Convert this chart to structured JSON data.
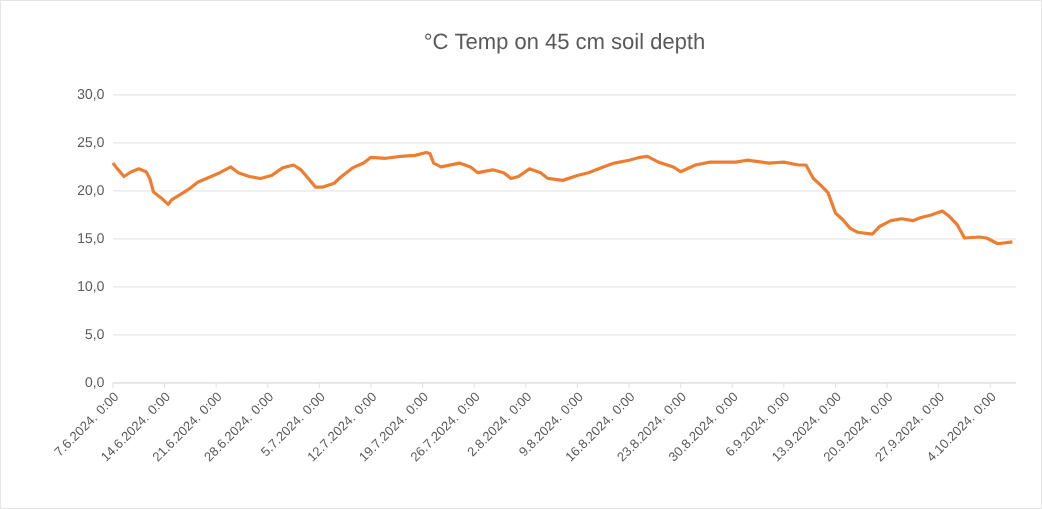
{
  "chart_data": {
    "type": "line",
    "title": "°C Temp on 45 cm soil depth",
    "x": [
      "2024-06-07",
      "2024-06-07T12:00",
      "2024-06-08T12:00",
      "2024-06-09T12:00",
      "2024-06-10T12:00",
      "2024-06-11T12:00",
      "2024-06-12",
      "2024-06-12T12:00",
      "2024-06-13T12:00",
      "2024-06-14T12:00",
      "2024-06-15",
      "2024-06-16T12:00",
      "2024-06-17T12:00",
      "2024-06-18T12:00",
      "2024-06-20",
      "2024-06-21T12:00",
      "2024-06-23",
      "2024-06-24",
      "2024-06-25T12:00",
      "2024-06-27",
      "2024-06-28T12:00",
      "2024-06-30",
      "2024-07-01T12:00",
      "2024-07-02T12:00",
      "2024-07-03T12:00",
      "2024-07-04T12:00",
      "2024-07-05T12:00",
      "2024-07-07",
      "2024-07-08",
      "2024-07-09T12:00",
      "2024-07-11",
      "2024-07-12",
      "2024-07-14",
      "2024-07-16",
      "2024-07-18",
      "2024-07-19T12:00",
      "2024-07-20",
      "2024-07-20T12:00",
      "2024-07-21T12:00",
      "2024-07-24",
      "2024-07-25T12:00",
      "2024-07-26T12:00",
      "2024-07-28T12:00",
      "2024-07-30",
      "2024-07-31",
      "2024-08-01",
      "2024-08-02T12:00",
      "2024-08-04",
      "2024-08-05",
      "2024-08-07",
      "2024-08-09",
      "2024-08-10T12:00",
      "2024-08-12T12:00",
      "2024-08-14",
      "2024-08-16",
      "2024-08-17T12:00",
      "2024-08-18T12:00",
      "2024-08-20",
      "2024-08-22",
      "2024-08-23",
      "2024-08-25",
      "2024-08-27",
      "2024-08-29T12:00",
      "2024-08-30T12:00",
      "2024-09-01",
      "2024-09-02",
      "2024-09-04",
      "2024-09-06",
      "2024-09-08",
      "2024-09-09",
      "2024-09-10",
      "2024-09-11",
      "2024-09-12",
      "2024-09-13",
      "2024-09-14",
      "2024-09-15",
      "2024-09-16",
      "2024-09-18",
      "2024-09-19",
      "2024-09-20T12:00",
      "2024-09-22",
      "2024-09-23T12:00",
      "2024-09-24T12:00",
      "2024-09-26",
      "2024-09-27T12:00",
      "2024-09-28T12:00",
      "2024-09-29T12:00",
      "2024-09-30T12:00",
      "2024-10-02T12:00",
      "2024-10-03T12:00",
      "2024-10-05",
      "2024-10-06",
      "2024-10-07"
    ],
    "values": [
      22.9,
      22.4,
      21.5,
      22.0,
      22.3,
      22.0,
      21.3,
      19.9,
      19.3,
      18.6,
      19.1,
      19.8,
      20.3,
      20.9,
      21.4,
      21.9,
      22.5,
      21.9,
      21.5,
      21.3,
      21.6,
      22.4,
      22.7,
      22.2,
      21.3,
      20.4,
      20.4,
      20.8,
      21.5,
      22.4,
      22.9,
      23.5,
      23.4,
      23.6,
      23.7,
      24.0,
      23.9,
      22.9,
      22.5,
      22.9,
      22.5,
      21.9,
      22.2,
      21.9,
      21.3,
      21.5,
      22.3,
      21.9,
      21.3,
      21.1,
      21.6,
      21.9,
      22.5,
      22.9,
      23.2,
      23.5,
      23.6,
      23.0,
      22.5,
      22.0,
      22.7,
      23.0,
      23.0,
      23.0,
      23.2,
      23.1,
      22.9,
      23.0,
      22.7,
      22.7,
      21.3,
      20.6,
      19.8,
      17.7,
      17.0,
      16.1,
      15.7,
      15.5,
      16.3,
      16.9,
      17.1,
      16.9,
      17.2,
      17.5,
      17.9,
      17.3,
      16.5,
      15.1,
      15.2,
      15.1,
      14.5,
      14.6,
      14.7
    ],
    "color": "#ed7d31",
    "line_style": "solid",
    "xlim": [
      "2024-06-07",
      "2024-10-07T12:00"
    ],
    "xticks": [
      {
        "value": "2024-06-07",
        "label": "7.6.2024. 0:00"
      },
      {
        "value": "2024-06-14",
        "label": "14.6.2024. 0:00"
      },
      {
        "value": "2024-06-21",
        "label": "21.6.2024. 0:00"
      },
      {
        "value": "2024-06-28",
        "label": "28.6.2024. 0:00"
      },
      {
        "value": "2024-07-05",
        "label": "5.7.2024. 0:00"
      },
      {
        "value": "2024-07-12",
        "label": "12.7.2024. 0:00"
      },
      {
        "value": "2024-07-19",
        "label": "19.7.2024. 0:00"
      },
      {
        "value": "2024-07-26",
        "label": "26.7.2024. 0:00"
      },
      {
        "value": "2024-08-02",
        "label": "2.8.2024. 0:00"
      },
      {
        "value": "2024-08-09",
        "label": "9.8.2024. 0:00"
      },
      {
        "value": "2024-08-16",
        "label": "16.8.2024. 0:00"
      },
      {
        "value": "2024-08-23",
        "label": "23.8.2024. 0:00"
      },
      {
        "value": "2024-08-30",
        "label": "30.8.2024. 0:00"
      },
      {
        "value": "2024-09-06",
        "label": "6.9.2024. 0:00"
      },
      {
        "value": "2024-09-13",
        "label": "13.9.2024. 0:00"
      },
      {
        "value": "2024-09-20",
        "label": "20.9.2024. 0:00"
      },
      {
        "value": "2024-09-27",
        "label": "27.9.2024. 0:00"
      },
      {
        "value": "2024-10-04",
        "label": "4.10.2024. 0:00"
      }
    ],
    "ylim": [
      0,
      30
    ],
    "yticks": [
      {
        "value": 0,
        "label": "0,0"
      },
      {
        "value": 5,
        "label": "5,0"
      },
      {
        "value": 10,
        "label": "10,0"
      },
      {
        "value": 15,
        "label": "15,0"
      },
      {
        "value": 20,
        "label": "20,0"
      },
      {
        "value": 25,
        "label": "25,0"
      },
      {
        "value": 30,
        "label": "30,0"
      }
    ],
    "grid": "y"
  }
}
